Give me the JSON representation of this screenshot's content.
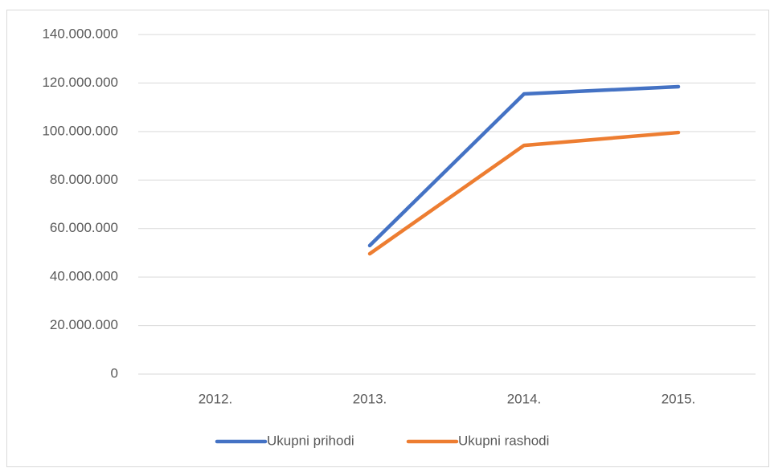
{
  "chart_data": {
    "type": "line",
    "categories": [
      "2012.",
      "2013.",
      "2014.",
      "2015."
    ],
    "series": [
      {
        "name": "Ukupni prihodi",
        "color": "#4472c4",
        "values": [
          null,
          53000000,
          115500000,
          118500000
        ]
      },
      {
        "name": "Ukupni rashodi",
        "color": "#ed7d31",
        "values": [
          null,
          49600000,
          94300000,
          99600000
        ]
      }
    ],
    "ylim": [
      0,
      140000000
    ],
    "yticks": [
      0,
      {
        "value": 20000000,
        "label": "20.000.000"
      },
      {
        "value": 40000000,
        "label": "40.000.000"
      },
      {
        "value": 60000000,
        "label": "60.000.000"
      },
      {
        "value": 80000000,
        "label": "80.000.000"
      },
      {
        "value": 100000000,
        "label": "100.000.000"
      },
      {
        "value": 120000000,
        "label": "120.000.000"
      },
      {
        "value": 140000000,
        "label": "140.000.000"
      }
    ],
    "grid": true,
    "legend": "bottom"
  }
}
